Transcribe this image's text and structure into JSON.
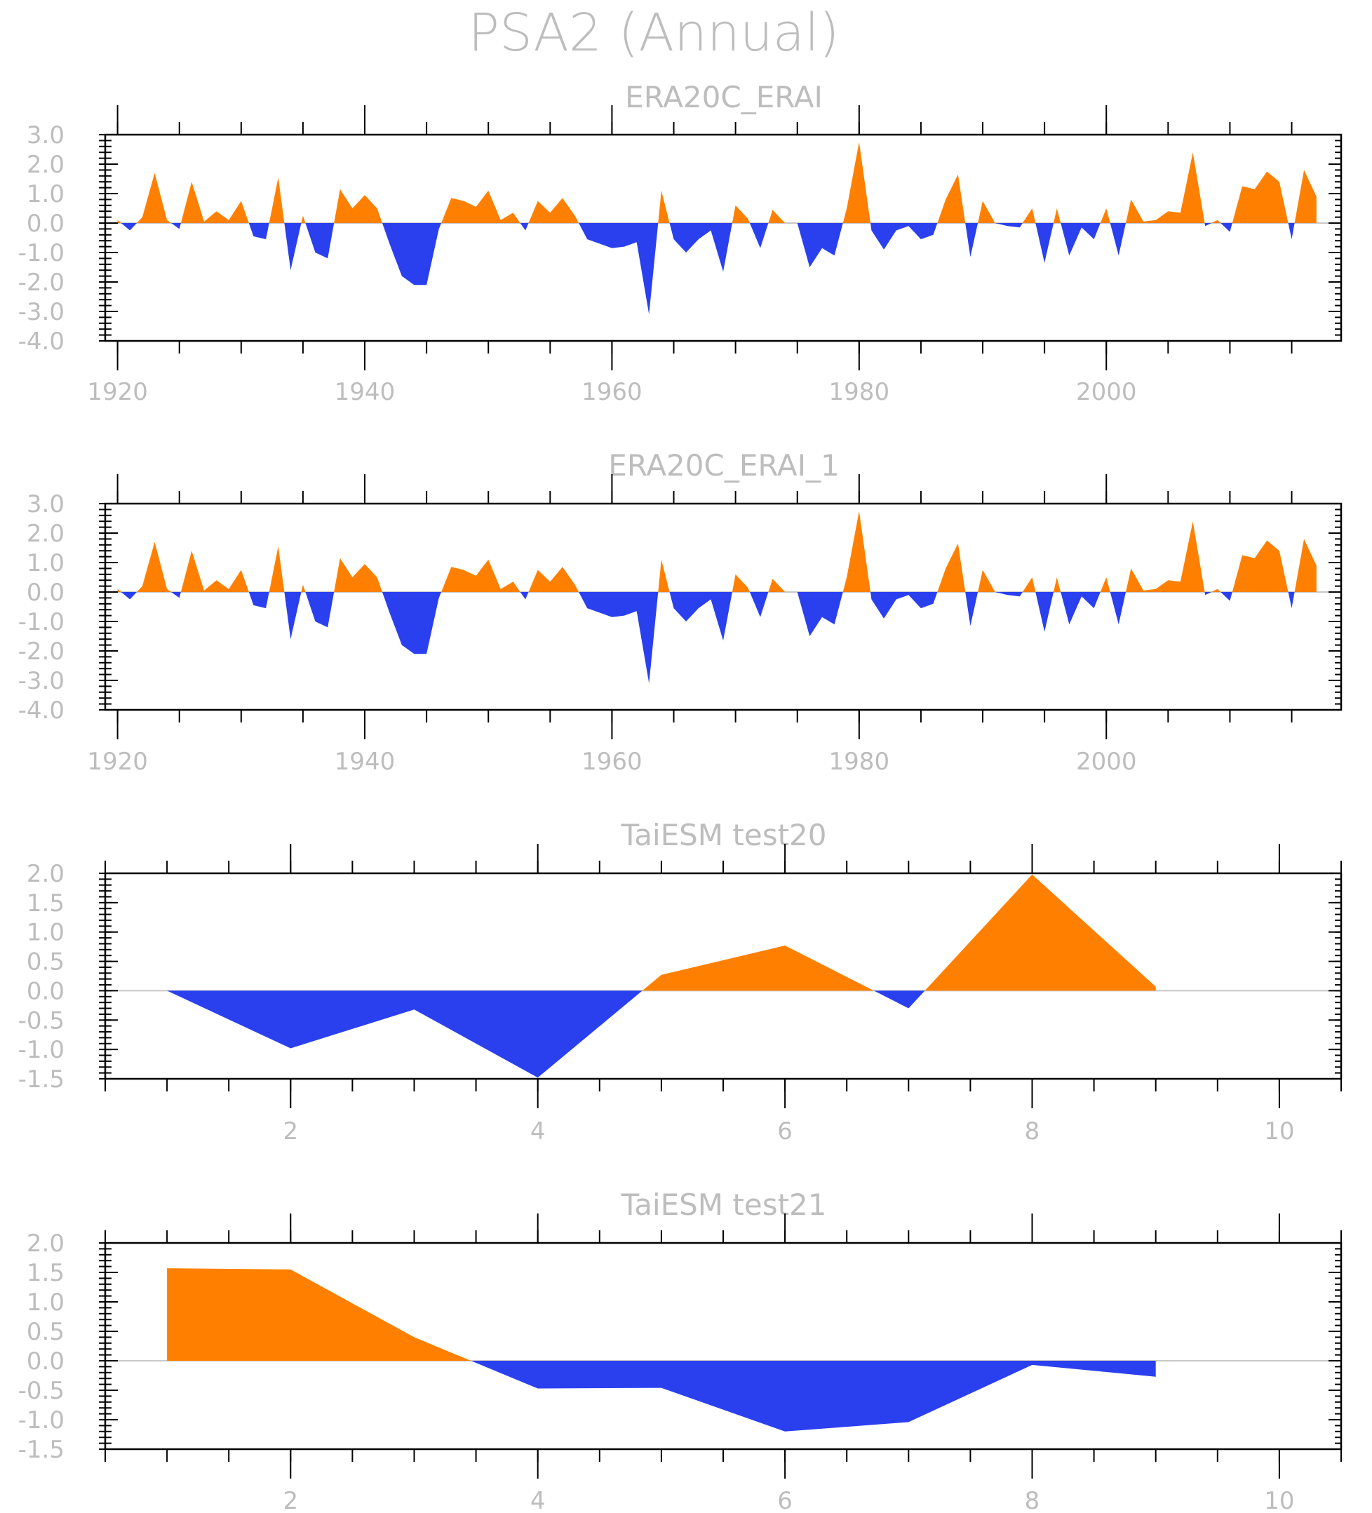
{
  "title": "PSA2 (Annual)",
  "colors": {
    "positive": "#ff8000",
    "negative": "#2a40ef",
    "axis": "#000000",
    "text": "#bdbdbd",
    "zero_line": "#c8c8c8"
  },
  "chart_data": [
    {
      "type": "area",
      "title": "ERA20C_ERAI",
      "xlim": [
        1919,
        2019
      ],
      "ylim": [
        -4.0,
        3.0
      ],
      "xticks": [
        1920,
        1940,
        1960,
        1980,
        2000
      ],
      "yticks": [
        "3.0",
        "2.0",
        "1.0",
        "0.0",
        "-1.0",
        "-2.0",
        "-3.0",
        "-4.0"
      ],
      "fill_above": "#ff8000",
      "fill_below": "#2a40ef",
      "x": [
        1920,
        1921,
        1922,
        1923,
        1924,
        1925,
        1926,
        1927,
        1928,
        1929,
        1930,
        1931,
        1932,
        1933,
        1934,
        1935,
        1936,
        1937,
        1938,
        1939,
        1940,
        1941,
        1942,
        1943,
        1944,
        1945,
        1946,
        1947,
        1948,
        1949,
        1950,
        1951,
        1952,
        1953,
        1954,
        1955,
        1956,
        1957,
        1958,
        1959,
        1960,
        1961,
        1962,
        1963,
        1964,
        1965,
        1966,
        1967,
        1968,
        1969,
        1970,
        1971,
        1972,
        1973,
        1974,
        1975,
        1976,
        1977,
        1978,
        1979,
        1980,
        1981,
        1982,
        1983,
        1984,
        1985,
        1986,
        1987,
        1988,
        1989,
        1990,
        1991,
        1992,
        1993,
        1994,
        1995,
        1996,
        1997,
        1998,
        1999,
        2000,
        2001,
        2002,
        2003,
        2004,
        2005,
        2006,
        2007,
        2008,
        2009,
        2010,
        2011,
        2012,
        2013,
        2014,
        2015,
        2016,
        2017
      ],
      "values": [
        0.1,
        -0.25,
        0.2,
        1.7,
        0.1,
        -0.2,
        1.4,
        0.05,
        0.4,
        0.1,
        0.75,
        -0.45,
        -0.55,
        1.55,
        -1.6,
        0.25,
        -1.0,
        -1.2,
        1.15,
        0.5,
        0.95,
        0.5,
        -0.7,
        -1.8,
        -2.1,
        -2.1,
        -0.2,
        0.85,
        0.75,
        0.55,
        1.1,
        0.1,
        0.35,
        -0.25,
        0.75,
        0.35,
        0.85,
        0.25,
        -0.55,
        -0.7,
        -0.85,
        -0.8,
        -0.65,
        -3.1,
        1.1,
        -0.55,
        -1.0,
        -0.55,
        -0.25,
        -1.65,
        0.6,
        0.15,
        -0.85,
        0.45,
        0.0,
        0.0,
        -1.5,
        -0.85,
        -1.1,
        0.5,
        2.75,
        -0.25,
        -0.9,
        -0.25,
        -0.1,
        -0.55,
        -0.4,
        0.8,
        1.65,
        -1.15,
        0.75,
        0.0,
        -0.1,
        -0.15,
        0.5,
        -1.35,
        0.5,
        -1.1,
        -0.15,
        -0.55,
        0.5,
        -1.1,
        0.8,
        0.05,
        0.1,
        0.4,
        0.35,
        2.4,
        -0.1,
        0.1,
        -0.3,
        1.25,
        1.15,
        1.75,
        1.4,
        -0.55,
        1.8,
        0.9
      ]
    },
    {
      "type": "area",
      "title": "ERA20C_ERAI_1",
      "xlim": [
        1919,
        2019
      ],
      "ylim": [
        -4.0,
        3.0
      ],
      "xticks": [
        1920,
        1940,
        1960,
        1980,
        2000
      ],
      "yticks": [
        "3.0",
        "2.0",
        "1.0",
        "0.0",
        "-1.0",
        "-2.0",
        "-3.0",
        "-4.0"
      ],
      "fill_above": "#ff8000",
      "fill_below": "#2a40ef",
      "x": [
        1920,
        1921,
        1922,
        1923,
        1924,
        1925,
        1926,
        1927,
        1928,
        1929,
        1930,
        1931,
        1932,
        1933,
        1934,
        1935,
        1936,
        1937,
        1938,
        1939,
        1940,
        1941,
        1942,
        1943,
        1944,
        1945,
        1946,
        1947,
        1948,
        1949,
        1950,
        1951,
        1952,
        1953,
        1954,
        1955,
        1956,
        1957,
        1958,
        1959,
        1960,
        1961,
        1962,
        1963,
        1964,
        1965,
        1966,
        1967,
        1968,
        1969,
        1970,
        1971,
        1972,
        1973,
        1974,
        1975,
        1976,
        1977,
        1978,
        1979,
        1980,
        1981,
        1982,
        1983,
        1984,
        1985,
        1986,
        1987,
        1988,
        1989,
        1990,
        1991,
        1992,
        1993,
        1994,
        1995,
        1996,
        1997,
        1998,
        1999,
        2000,
        2001,
        2002,
        2003,
        2004,
        2005,
        2006,
        2007,
        2008,
        2009,
        2010,
        2011,
        2012,
        2013,
        2014,
        2015,
        2016,
        2017
      ],
      "values": [
        0.1,
        -0.25,
        0.2,
        1.7,
        0.1,
        -0.2,
        1.4,
        0.05,
        0.4,
        0.1,
        0.75,
        -0.45,
        -0.55,
        1.55,
        -1.6,
        0.25,
        -1.0,
        -1.2,
        1.15,
        0.5,
        0.95,
        0.5,
        -0.7,
        -1.8,
        -2.1,
        -2.1,
        -0.2,
        0.85,
        0.75,
        0.55,
        1.1,
        0.1,
        0.35,
        -0.25,
        0.75,
        0.35,
        0.85,
        0.25,
        -0.55,
        -0.7,
        -0.85,
        -0.8,
        -0.65,
        -3.1,
        1.1,
        -0.55,
        -1.0,
        -0.55,
        -0.25,
        -1.65,
        0.6,
        0.15,
        -0.85,
        0.45,
        0.0,
        0.0,
        -1.5,
        -0.85,
        -1.1,
        0.5,
        2.75,
        -0.25,
        -0.9,
        -0.25,
        -0.1,
        -0.55,
        -0.4,
        0.8,
        1.65,
        -1.15,
        0.75,
        0.0,
        -0.1,
        -0.15,
        0.5,
        -1.35,
        0.5,
        -1.1,
        -0.15,
        -0.55,
        0.5,
        -1.1,
        0.8,
        0.05,
        0.1,
        0.4,
        0.35,
        2.4,
        -0.1,
        0.1,
        -0.3,
        1.25,
        1.15,
        1.75,
        1.4,
        -0.55,
        1.8,
        0.9
      ]
    },
    {
      "type": "area",
      "title": "TaiESM test20",
      "xlim": [
        0.5,
        10.5
      ],
      "ylim": [
        -1.5,
        2.0
      ],
      "xticks": [
        2,
        4,
        6,
        8,
        10
      ],
      "yticks": [
        "2.0",
        "1.5",
        "1.0",
        "0.5",
        "0.0",
        "-0.5",
        "-1.0",
        "-1.5"
      ],
      "fill_above": "#ff8000",
      "fill_below": "#2a40ef",
      "x": [
        1,
        2,
        3,
        4,
        5,
        6,
        7,
        8,
        9
      ],
      "values": [
        0.0,
        -0.98,
        -0.32,
        -1.48,
        0.27,
        0.77,
        -0.3,
        1.98,
        0.07
      ]
    },
    {
      "type": "area",
      "title": "TaiESM test21",
      "xlim": [
        0.5,
        10.5
      ],
      "ylim": [
        -1.5,
        2.0
      ],
      "xticks": [
        2,
        4,
        6,
        8,
        10
      ],
      "yticks": [
        "2.0",
        "1.5",
        "1.0",
        "0.5",
        "0.0",
        "-0.5",
        "-1.0",
        "-1.5"
      ],
      "fill_above": "#ff8000",
      "fill_below": "#2a40ef",
      "x": [
        1,
        2,
        3,
        4,
        5,
        6,
        7,
        8,
        9
      ],
      "values": [
        1.57,
        1.55,
        0.4,
        -0.47,
        -0.46,
        -1.2,
        -1.04,
        -0.07,
        -0.27
      ]
    }
  ]
}
